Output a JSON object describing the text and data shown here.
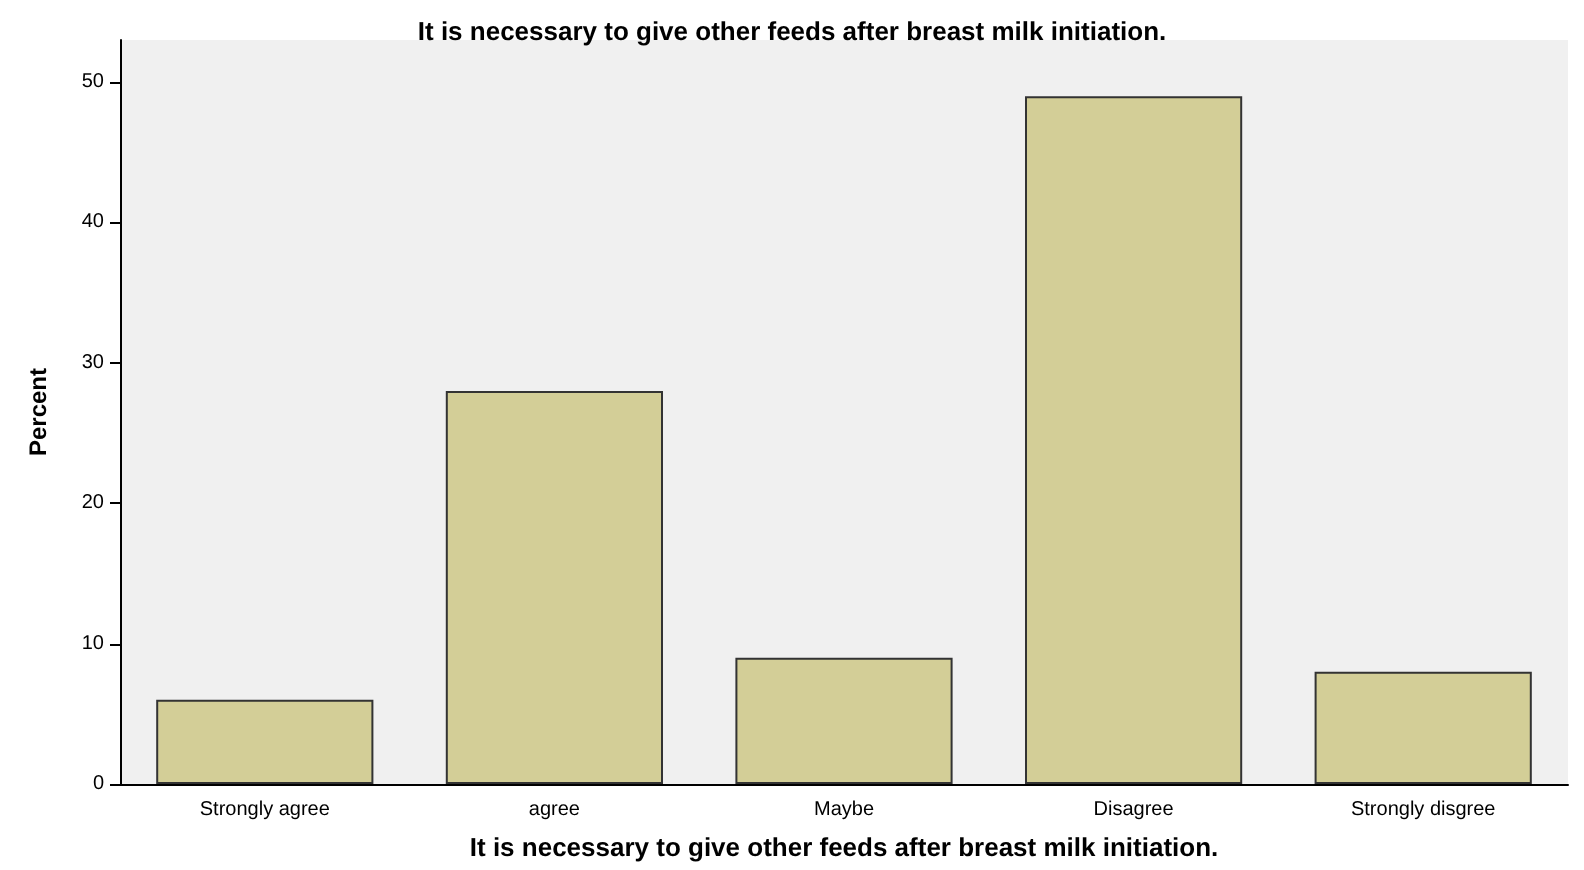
{
  "chart_data": {
    "type": "bar",
    "title": "It is necessary to give other feeds after breast milk initiation.",
    "xlabel": "It is necessary to give other feeds after breast milk initiation.",
    "ylabel": "Percent",
    "categories": [
      "Strongly agree",
      "agree",
      "Maybe",
      "Disagree",
      "Strongly disgree"
    ],
    "values": [
      6,
      28,
      9,
      49,
      8
    ],
    "color": "#d3ce97",
    "ylim": [
      0,
      53
    ],
    "yticks": [
      0,
      10,
      20,
      30,
      40,
      50
    ],
    "grid": false
  }
}
